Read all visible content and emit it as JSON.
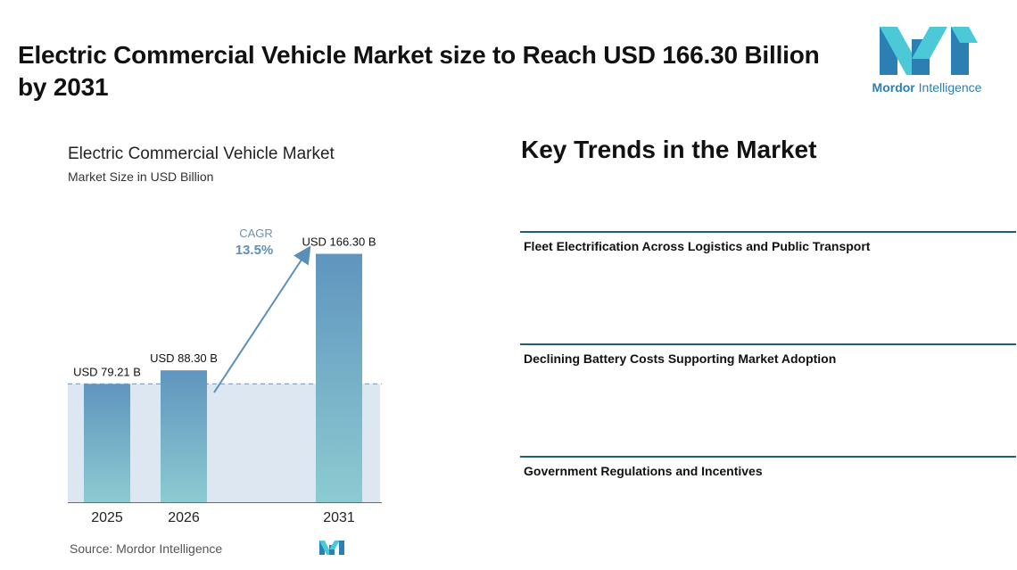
{
  "header": {
    "title": "Electric Commercial Vehicle Market size to Reach USD 166.30 Billion by 2031"
  },
  "logo": {
    "brand_bold": "Mordor",
    "brand_regular": " Intelligence",
    "colors": {
      "dark": "#2c7fb3",
      "light": "#4cc9d6"
    }
  },
  "chart_data": {
    "type": "bar",
    "title": "Electric Commercial Vehicle Market",
    "subtitle": "Market Size in USD Billion",
    "categories": [
      "2025",
      "2026",
      "2031"
    ],
    "values": [
      79.21,
      88.3,
      166.3
    ],
    "data_labels": [
      "USD 79.21 B",
      "USD 88.30 B",
      "USD 166.30 B"
    ],
    "ylim": [
      0,
      175
    ],
    "cagr_label": "CAGR",
    "cagr_value": "13.5%",
    "colors": {
      "bar_top": "#5f95bf",
      "bar_bottom": "#8ccbd1",
      "band": "#dce7f1",
      "arrow": "#5b8fb9",
      "dashed": "#8aa3bf"
    }
  },
  "source": "Source:  Mordor Intelligence",
  "trends": {
    "heading": "Key Trends in the Market",
    "items": [
      "Fleet Electrification Across Logistics and Public Transport",
      "Declining Battery Costs Supporting Market Adoption",
      "Government Regulations and Incentives"
    ],
    "line_color": "#1f5f7a"
  }
}
